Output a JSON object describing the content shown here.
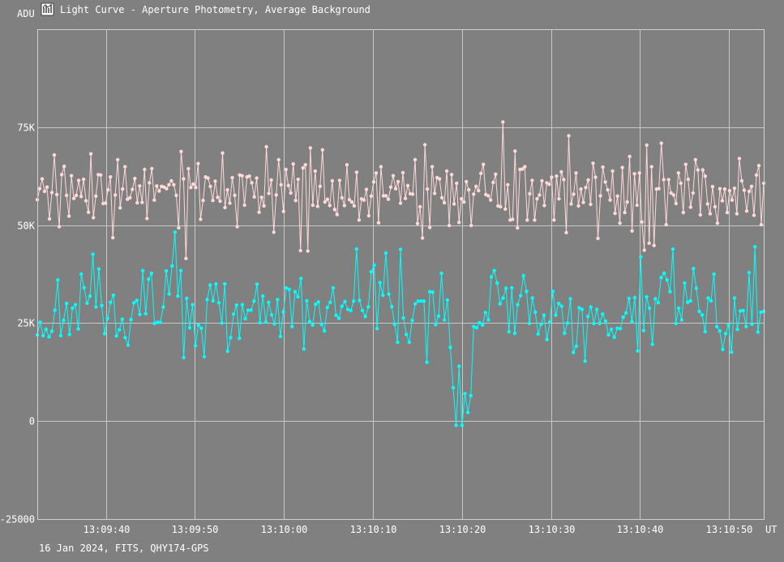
{
  "window": {
    "title": "Light Curve - Aperture Photometry, Average Background",
    "icon": "light-curve-app-icon"
  },
  "footer": {
    "info": "16 Jan 2024, FITS, QHY174-GPS"
  },
  "colors": {
    "background": "#808080",
    "grid": "#c8c8c8",
    "series_upper": "#ffd8d8",
    "series_lower": "#00ffff",
    "text": "#ffffff"
  },
  "chart_data": {
    "type": "line",
    "title": "Light Curve - Aperture Photometry, Average Background",
    "ylabel": "ADU",
    "xlabel": "UT",
    "ylim": [
      -25000,
      100000
    ],
    "yticks": [
      -25000,
      0,
      25000,
      50000,
      75000
    ],
    "ytick_labels": [
      "-25000",
      "0",
      "25K",
      "50K",
      "75K"
    ],
    "xlim": [
      -17.7,
      63.9
    ],
    "xticks": [
      -10,
      0,
      10,
      20,
      30,
      40,
      50,
      60,
      70
    ],
    "xtick_labels": [
      "13:09:40",
      "13:09:50",
      "13:10:00",
      "13:10:10",
      "13:10:20",
      "13:10:30",
      "13:10:40",
      "13:10:50"
    ],
    "x_origin_time": "13:09:50",
    "x_unit_note": "seconds",
    "grid": true,
    "legend": "none",
    "series": [
      {
        "color": "#ffd8d8",
        "values": [
          56500,
          59300,
          61800,
          58600,
          59700,
          51600,
          58300,
          67900,
          57800,
          49600,
          62900,
          65000,
          57600,
          52300,
          62600,
          56800,
          57600,
          61400,
          57300,
          61700,
          56200,
          53300,
          68200,
          51900,
          57400,
          62900,
          62800,
          55500,
          55600,
          59000,
          62300,
          46800,
          57700,
          66700,
          54400,
          59200,
          64900,
          56600,
          57000,
          59100,
          61900,
          55700,
          60000,
          55800,
          64200,
          51700,
          60800,
          64400,
          56400,
          60000,
          58700,
          59900,
          59700,
          59300,
          60300,
          61300,
          60300,
          57600,
          49300,
          68800,
          61800,
          41500,
          64400,
          59600,
          60500,
          59600,
          65700,
          51500,
          56300,
          62300,
          62000,
          59900,
          56300,
          61200,
          57100,
          56100,
          68400,
          54500,
          59000,
          55600,
          62100,
          57600,
          49600,
          62800,
          62600,
          55100,
          62300,
          62500,
          60800,
          57200,
          62000,
          53300,
          57100,
          54900,
          70000,
          58100,
          61500,
          48200,
          57700,
          66700,
          60300,
          53500,
          64200,
          60100,
          58200,
          65600,
          56300,
          61700,
          43500,
          64600,
          65400,
          43400,
          69700,
          55100,
          63800,
          54800,
          59900,
          69200,
          55900,
          56600,
          55000,
          61300,
          54000,
          52700,
          61400,
          57000,
          55000,
          65400,
          56500,
          55900,
          54900,
          63500,
          51300,
          56700,
          56400,
          59100,
          52400,
          57400,
          61000,
          63300,
          50600,
          64900,
          57500,
          57500,
          56600,
          59700,
          62600,
          59300,
          61100,
          55600,
          63400,
          56800,
          60100,
          58000,
          57900,
          66700,
          50400,
          54700,
          46700,
          70500,
          59200,
          49400,
          64900,
          58100,
          62100,
          61800,
          57000,
          55700,
          63800,
          49900,
          62900,
          55400,
          60700,
          50700,
          56700,
          55900,
          61100,
          59000,
          49900,
          57900,
          59900,
          58800,
          63200,
          65500,
          57800,
          57500,
          56400,
          60900,
          63000,
          54900,
          54700,
          76300,
          54100,
          60300,
          51300,
          51500,
          68900,
          49300,
          64200,
          64300,
          64900,
          51300,
          58000,
          61400,
          51300,
          56700,
          57700,
          61300,
          55000,
          60800,
          60400,
          62200,
          51300,
          62500,
          56700,
          63600,
          61600,
          48100,
          72800,
          55400,
          57900,
          63300,
          54900,
          59200,
          55800,
          59600,
          61500,
          55300,
          65800,
          62200,
          46600,
          57500,
          64800,
          61000,
          59000,
          56400,
          63800,
          53000,
          57400,
          50500,
          64700,
          53200,
          55900,
          67500,
          48500,
          63100,
          55100,
          63300,
          50800,
          43600,
          70400,
          45400,
          64900,
          44800,
          59200,
          59300,
          70900,
          61600,
          50100,
          61600,
          58200,
          57700,
          55500,
          63300,
          60700,
          53200,
          65500,
          61700,
          54600,
          58200,
          66700,
          64100,
          52600,
          64100,
          62500,
          55400,
          52900,
          59800,
          54700,
          50500,
          59300,
          56200,
          59200,
          53200,
          58800,
          56400,
          59400,
          52900,
          67000,
          61300,
          58900,
          53600,
          58600,
          59900,
          52500,
          62800,
          65200,
          50100,
          60700
        ]
      },
      {
        "color": "#00ffff",
        "values": [
          22000,
          25200,
          21800,
          23400,
          21500,
          22900,
          28300,
          36000,
          21800,
          25700,
          30000,
          22100,
          28800,
          29700,
          23500,
          37500,
          34000,
          30100,
          31900,
          42600,
          29100,
          38800,
          29500,
          22300,
          26200,
          30300,
          32100,
          21700,
          23300,
          26000,
          21300,
          19400,
          25900,
          30200,
          30800,
          27200,
          38400,
          27400,
          36200,
          37700,
          24900,
          25200,
          25200,
          29100,
          38300,
          32400,
          39600,
          48200,
          31900,
          38400,
          16200,
          31300,
          23800,
          29700,
          19200,
          24500,
          23700,
          16400,
          31000,
          34700,
          30700,
          35000,
          30200,
          25000,
          35000,
          17800,
          21300,
          27300,
          29600,
          21100,
          29700,
          26100,
          28300,
          28300,
          30600,
          34900,
          25100,
          31900,
          25300,
          30300,
          27100,
          24800,
          31000,
          21600,
          27900,
          34000,
          33600,
          24100,
          33000,
          31700,
          36400,
          18400,
          30700,
          25400,
          24500,
          29800,
          30400,
          24700,
          23000,
          29000,
          30300,
          34000,
          27000,
          26200,
          29300,
          30500,
          28500,
          28200,
          30600,
          43900,
          30800,
          28200,
          26700,
          29100,
          38100,
          39800,
          23600,
          35300,
          32100,
          42900,
          32400,
          29200,
          24700,
          20100,
          43800,
          26300,
          22100,
          20100,
          25700,
          29900,
          30600,
          30600,
          30600,
          15000,
          33000,
          32900,
          24600,
          26800,
          37700,
          25800,
          30900,
          18800,
          8500,
          -1100,
          14000,
          -1100,
          7000,
          2200,
          6500,
          24100,
          23800,
          25100,
          24500,
          27700,
          25800,
          36800,
          38400,
          35200,
          29900,
          31400,
          33900,
          22800,
          34000,
          22400,
          29700,
          32000,
          37100,
          33100,
          24900,
          31400,
          27800,
          22200,
          24700,
          27000,
          20800,
          25300,
          33100,
          27000,
          30000,
          29300,
          22400,
          25000,
          31200,
          17500,
          19100,
          28900,
          28500,
          15300,
          26700,
          29100,
          24900,
          28500,
          24900,
          27300,
          25500,
          22000,
          23400,
          21400,
          23700,
          23600,
          26500,
          27600,
          31300,
          25400,
          31500,
          17900,
          41900,
          23100,
          31700,
          28800,
          19600,
          31200,
          30200,
          36600,
          37700,
          36000,
          33000,
          43900,
          24900,
          28800,
          25800,
          35200,
          30300,
          30700,
          38900,
          33900,
          28000,
          27100,
          22800,
          31400,
          30700,
          37500,
          24100,
          23000,
          18300,
          22300,
          24500,
          17600,
          31400,
          23400,
          28100,
          28200,
          24100,
          37900,
          24700,
          44500,
          22700,
          27800,
          28000
        ]
      }
    ]
  }
}
